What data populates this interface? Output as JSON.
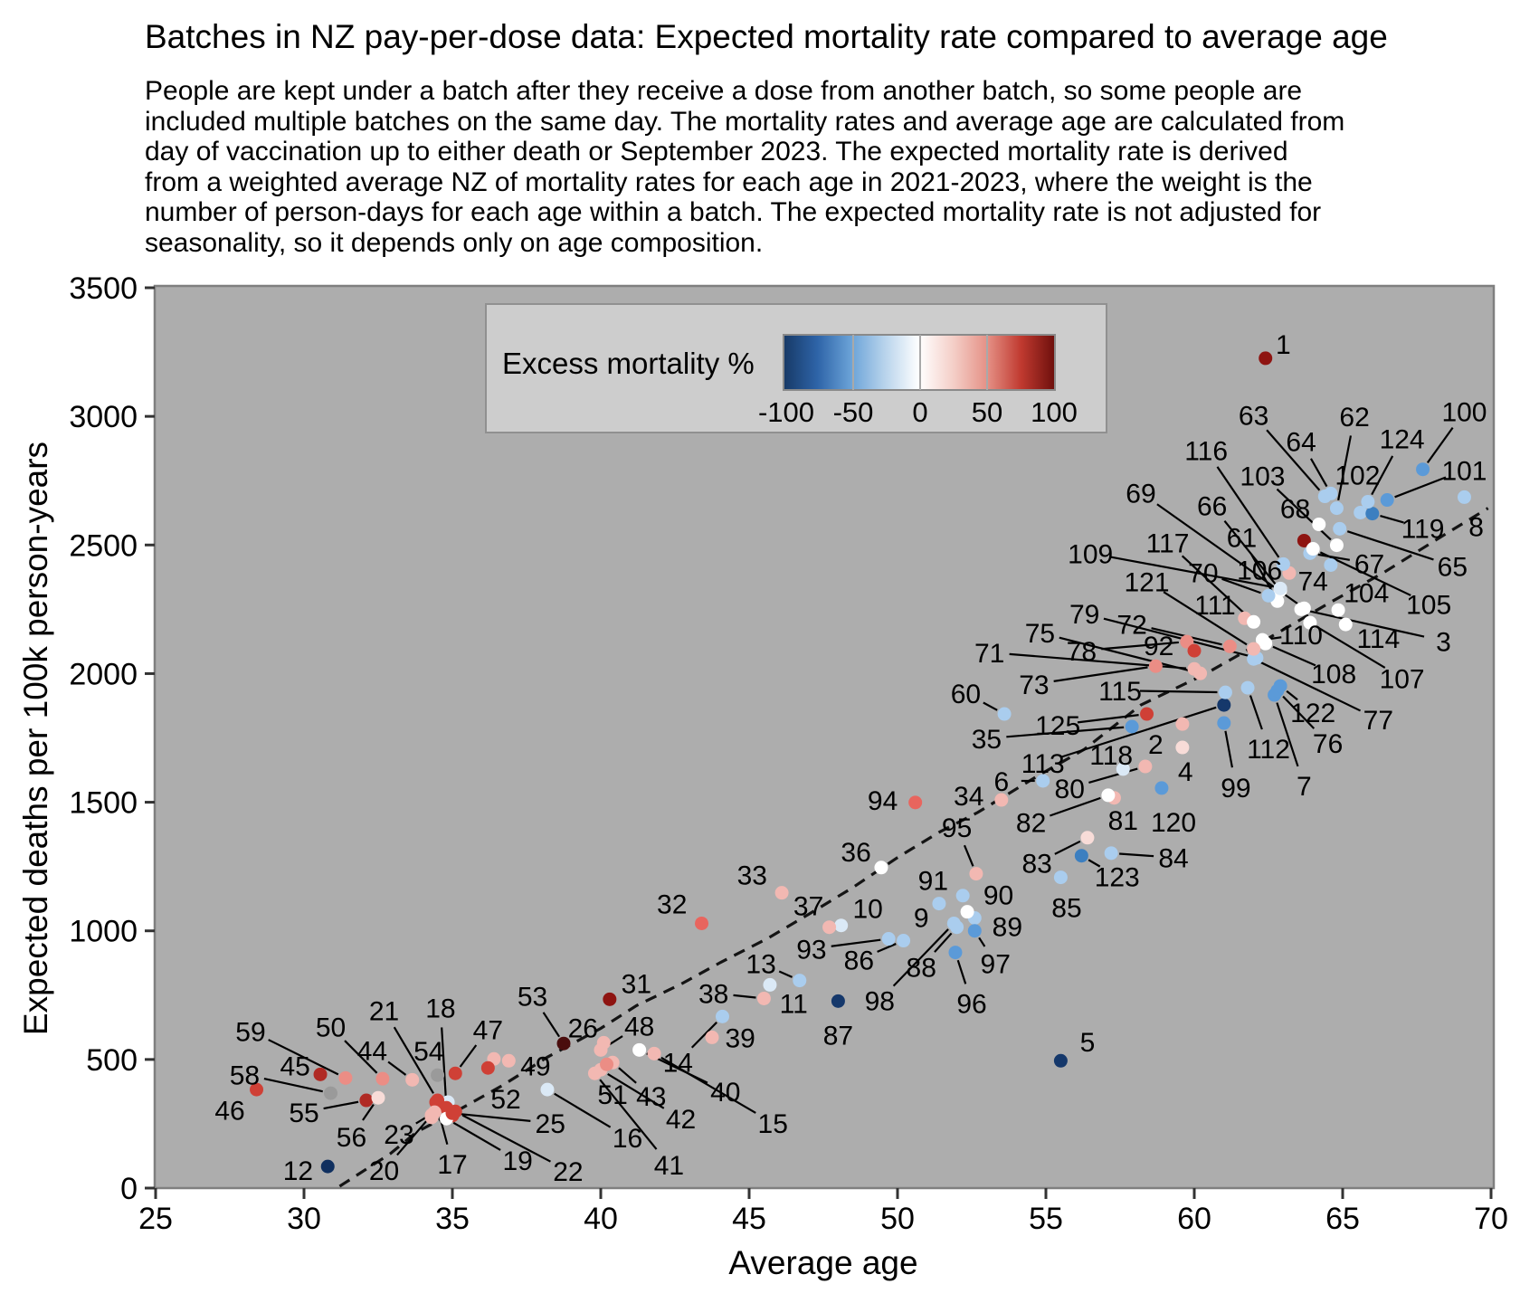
{
  "title": "Batches in NZ pay-per-dose data: Expected mortality rate compared to average age",
  "subtitle": {
    "lines": [
      "People are kept under a batch after they receive a dose from another batch, so some people are",
      "included multiple batches on the same day. The mortality rates and average age are calculated from",
      "day of vaccination up to either death or September 2023. The expected mortality rate is derived",
      "from a weighted average NZ of mortality rates for each age in 2021-2023, where the weight is the",
      "number of person-days for each age within a batch. The expected mortality rate is not adjusted for",
      "seasonality, so it depends only on age composition."
    ]
  },
  "axes": {
    "xlabel": "Average age",
    "ylabel": "Expected deaths per 100k person-years",
    "xticks": [
      25,
      30,
      35,
      40,
      45,
      50,
      55,
      60,
      65,
      70
    ],
    "yticks": [
      0,
      500,
      1000,
      1500,
      2000,
      2500,
      3000,
      3500
    ],
    "xlim": [
      25,
      70
    ],
    "ylim": [
      0,
      3500
    ],
    "plot_bg": "#adadad",
    "border_color": "#7f7f7f"
  },
  "legend": {
    "label": "Excess mortality %",
    "ticks": [
      -100,
      -50,
      0,
      50,
      100
    ],
    "bg": "#cdcdcd",
    "gradient": [
      "#173966",
      "#2e64a8",
      "#6ba3d8",
      "#b9d4ec",
      "#ffffff",
      "#f4cfc8",
      "#e59186",
      "#c03a30",
      "#6d0f0c"
    ]
  },
  "chart_data": {
    "type": "scatter",
    "title": "Batches in NZ pay-per-dose data: Expected mortality rate compared to average age",
    "xlabel": "Average age",
    "ylabel": "Expected deaths per 100k person-years",
    "xlim": [
      25,
      70
    ],
    "ylim": [
      0,
      3500
    ],
    "legend_position": "top-left-inside",
    "grid": false,
    "point_columns": [
      "id",
      "age",
      "expected_rate",
      "color",
      "label_age",
      "label_rate"
    ],
    "points": [
      [
        1,
        62.4,
        3226,
        "#8e1411",
        63.0,
        3282
      ],
      [
        2,
        59.6,
        1804,
        "#f2b8b2",
        58.7,
        1727
      ],
      [
        3,
        63.6,
        2250,
        "#ffffff",
        68.4,
        2127
      ],
      [
        4,
        59.6,
        1713,
        "#f8dcd8",
        59.7,
        1622
      ],
      [
        5,
        55.5,
        495,
        "#15386b",
        56.4,
        569
      ],
      [
        6,
        54.9,
        1583,
        "#aacdee",
        53.5,
        1583
      ],
      [
        7,
        62.7,
        1917,
        "#5b9ad8",
        63.7,
        1566
      ],
      [
        8,
        69.1,
        2686,
        "#aacdee",
        69.5,
        2573
      ],
      [
        9,
        51.4,
        1106,
        "#aacdee",
        50.8,
        1053
      ],
      [
        10,
        48.1,
        1021,
        "#dbe9f6",
        49.0,
        1088
      ],
      [
        11,
        45.7,
        790,
        "#dbe9f6",
        46.5,
        720
      ],
      [
        12,
        30.8,
        84,
        "#0f2f5f",
        29.8,
        70
      ],
      [
        13,
        46.7,
        807,
        "#aacdee",
        45.4,
        874
      ],
      [
        14,
        44.1,
        667,
        "#aacdee",
        42.6,
        491
      ],
      [
        15,
        41.8,
        523,
        "#f2b8b2",
        45.8,
        253
      ],
      [
        16,
        38.2,
        383,
        "#dbe9f6",
        40.9,
        197
      ],
      [
        17,
        34.45,
        334,
        "#cf4036",
        35.0,
        95
      ],
      [
        18,
        34.8,
        312,
        "#cf4036",
        34.6,
        702
      ],
      [
        19,
        34.8,
        270,
        "#ffffff",
        37.2,
        109
      ],
      [
        20,
        34.3,
        284,
        "#f2b8b2",
        32.7,
        70
      ],
      [
        21,
        34.5,
        341,
        "#cf4036",
        32.7,
        692
      ],
      [
        22,
        35.1,
        298,
        "#cf4036",
        38.9,
        67
      ],
      [
        23,
        34.4,
        295,
        "#f2b8b2",
        33.2,
        211
      ],
      [
        25,
        35.0,
        291,
        "#cf4036",
        38.3,
        253
      ],
      [
        26,
        40.1,
        565,
        "#f2b8b2",
        39.4,
        625
      ],
      [
        31,
        40.3,
        734,
        "#8e1411",
        41.2,
        797
      ],
      [
        32,
        43.4,
        1029,
        "#e8655e",
        42.4,
        1106
      ],
      [
        33,
        46.1,
        1148,
        "#f2b8b2",
        45.1,
        1218
      ],
      [
        34,
        53.5,
        1509,
        "#f2b8b2",
        52.4,
        1527
      ],
      [
        35,
        57.9,
        1794,
        "#5b9ad8",
        53.0,
        1748
      ],
      [
        36,
        49.45,
        1246,
        "#ffffff",
        48.6,
        1309
      ],
      [
        37,
        47.7,
        1014,
        "#f2b8b2",
        47.0,
        1099
      ],
      [
        38,
        45.5,
        737,
        "#f2b8b2",
        43.8,
        758
      ],
      [
        39,
        43.75,
        586,
        "#f2b8b2",
        44.7,
        586
      ],
      [
        40,
        41.3,
        537,
        "#ffffff",
        44.2,
        376
      ],
      [
        41,
        39.8,
        446,
        "#f2b8b2",
        42.3,
        91
      ],
      [
        42,
        40.0,
        460,
        "#f2b8b2",
        42.7,
        270
      ],
      [
        43,
        40.4,
        488,
        "#f2b8b2",
        41.7,
        358
      ],
      [
        44,
        33.65,
        421,
        "#f2b8b2",
        32.3,
        537
      ],
      [
        45,
        30.55,
        442,
        "#b02a24",
        29.7,
        477
      ],
      [
        46,
        28.4,
        383,
        "#cf4036",
        27.5,
        305
      ],
      [
        47,
        35.1,
        446,
        "#cf4036",
        36.2,
        618
      ],
      [
        48,
        40.0,
        537,
        "#f2b8b2",
        41.3,
        632
      ],
      [
        49,
        36.9,
        495,
        "#f2b8b2",
        37.8,
        477
      ],
      [
        50,
        32.65,
        425,
        "#eb8d85",
        30.9,
        628
      ],
      [
        51,
        40.2,
        481,
        "#eb8d85",
        40.4,
        365
      ],
      [
        52,
        36.2,
        467,
        "#cf4036",
        36.8,
        348
      ],
      [
        53,
        38.75,
        562,
        "#4a0d0d",
        37.7,
        748
      ],
      [
        54,
        34.5,
        439,
        "#9a9a9a",
        34.2,
        534
      ],
      [
        55,
        32.1,
        341,
        "#b02a24",
        30.0,
        295
      ],
      [
        56,
        32.5,
        351,
        "#f8dcd8",
        31.6,
        200
      ],
      [
        58,
        30.9,
        369,
        "#9a9a9a",
        28.0,
        442
      ],
      [
        59,
        31.4,
        428,
        "#eb8d85",
        28.2,
        611
      ],
      [
        60,
        53.6,
        1843,
        "#aacdee",
        52.3,
        1924
      ],
      [
        61,
        62.8,
        2282,
        "#ffffff",
        61.6,
        2531
      ],
      [
        62,
        64.8,
        2643,
        "#aacdee",
        65.4,
        3001
      ],
      [
        63,
        64.4,
        2689,
        "#aacdee",
        62.0,
        3005
      ],
      [
        64,
        64.6,
        2700,
        "#aacdee",
        63.6,
        2903
      ],
      [
        65,
        64.9,
        2563,
        "#aacdee",
        68.7,
        2419
      ],
      [
        66,
        62.9,
        2324,
        "#ffffff",
        60.6,
        2654
      ],
      [
        67,
        63.9,
        2468,
        "#aacdee",
        65.9,
        2429
      ],
      [
        68,
        63.7,
        2517,
        "#8e1411",
        63.4,
        2643
      ],
      [
        69,
        63.7,
        2254,
        "#ffffff",
        58.2,
        2703
      ],
      [
        70,
        62.5,
        2303,
        "#aacdee",
        60.3,
        2394
      ],
      [
        71,
        60.0,
        2018,
        "#f2b8b2",
        53.1,
        2082
      ],
      [
        72,
        61.2,
        2106,
        "#eb8d85",
        57.9,
        2194
      ],
      [
        73,
        58.7,
        2029,
        "#eb8d85",
        54.6,
        1959
      ],
      [
        74,
        64.6,
        2422,
        "#aacdee",
        64.0,
        2362
      ],
      [
        75,
        60.2,
        2001,
        "#f2b8b2",
        54.8,
        2159
      ],
      [
        76,
        62.8,
        1934,
        "#5b9ad8",
        64.5,
        1731
      ],
      [
        77,
        62.0,
        2057,
        "#aacdee",
        66.2,
        1822
      ],
      [
        78,
        59.75,
        2124,
        "#eb8d85",
        56.2,
        2089
      ],
      [
        79,
        62.1,
        2061,
        "#aacdee",
        56.3,
        2233
      ],
      [
        80,
        58.35,
        1639,
        "#f2b8b2",
        55.8,
        1555
      ],
      [
        81,
        57.3,
        1517,
        "#f2b8b2",
        57.6,
        1432
      ],
      [
        82,
        57.1,
        1527,
        "#ffffff",
        54.5,
        1422
      ],
      [
        83,
        56.4,
        1362,
        "#f8dcd8",
        54.7,
        1264
      ],
      [
        84,
        57.2,
        1302,
        "#aacdee",
        59.3,
        1285
      ],
      [
        85,
        55.5,
        1208,
        "#aacdee",
        55.7,
        1092
      ],
      [
        86,
        50.2,
        962,
        "#aacdee",
        48.7,
        888
      ],
      [
        87,
        48.0,
        727,
        "#15386b",
        48.0,
        597
      ],
      [
        88,
        52.0,
        1014,
        "#aacdee",
        50.8,
        860
      ],
      [
        89,
        52.6,
        1050,
        "#aacdee",
        53.7,
        1018
      ],
      [
        90,
        52.35,
        1074,
        "#ffffff",
        53.4,
        1141
      ],
      [
        91,
        52.2,
        1137,
        "#aacdee",
        51.2,
        1197
      ],
      [
        92,
        60.0,
        2089,
        "#cf4036",
        58.8,
        2110
      ],
      [
        93,
        49.7,
        969,
        "#aacdee",
        47.1,
        930
      ],
      [
        94,
        50.6,
        1499,
        "#e8655e",
        49.5,
        1509
      ],
      [
        95,
        52.65,
        1222,
        "#f2b8b2",
        52.0,
        1404
      ],
      [
        96,
        51.95,
        916,
        "#5b9ad8",
        52.5,
        720
      ],
      [
        97,
        52.6,
        1000,
        "#5b9ad8",
        53.3,
        874
      ],
      [
        98,
        51.9,
        1029,
        "#aacdee",
        49.4,
        730
      ],
      [
        99,
        61.0,
        1808,
        "#5b9ad8",
        61.4,
        1559
      ],
      [
        100,
        67.7,
        2794,
        "#5b9ad8",
        69.1,
        3019
      ],
      [
        101,
        66.5,
        2675,
        "#5b9ad8",
        69.1,
        2791
      ],
      [
        102,
        65.6,
        2626,
        "#aacdee",
        65.5,
        2773
      ],
      [
        103,
        64.8,
        2499,
        "#ffffff",
        62.3,
        2770
      ],
      [
        104,
        64.85,
        2247,
        "#ffffff",
        65.8,
        2317
      ],
      [
        105,
        64.0,
        2485,
        "#ffffff",
        67.9,
        2271
      ],
      [
        106,
        63.2,
        2391,
        "#f2b8b2",
        62.2,
        2405
      ],
      [
        107,
        63.9,
        2198,
        "#ffffff",
        67.0,
        1983
      ],
      [
        108,
        62.4,
        2117,
        "#ffffff",
        64.7,
        2001
      ],
      [
        109,
        62.9,
        2331,
        "#dbe9f6",
        56.5,
        2468
      ],
      [
        110,
        62.3,
        2131,
        "#ffffff",
        63.6,
        2152
      ],
      [
        111,
        61.7,
        2215,
        "#f2b8b2",
        60.7,
        2268
      ],
      [
        112,
        61.8,
        1945,
        "#aacdee",
        62.5,
        1710
      ],
      [
        113,
        61.0,
        1878,
        "#15386b",
        54.9,
        1653
      ],
      [
        114,
        65.1,
        2191,
        "#ffffff",
        66.2,
        2138
      ],
      [
        115,
        61.05,
        1927,
        "#aacdee",
        57.5,
        1934
      ],
      [
        116,
        63.0,
        2426,
        "#aacdee",
        60.4,
        2868
      ],
      [
        117,
        62.0,
        2201,
        "#ffffff",
        59.1,
        2510
      ],
      [
        118,
        57.6,
        1629,
        "#dbe9f6",
        57.2,
        1685
      ],
      [
        119,
        66.0,
        2622,
        "#3c7fc0",
        67.7,
        2566
      ],
      [
        120,
        58.9,
        1555,
        "#5b9ad8",
        59.3,
        1425
      ],
      [
        121,
        62.0,
        2096,
        "#f2b8b2",
        58.4,
        2359
      ],
      [
        122,
        62.9,
        1952,
        "#5b9ad8",
        64.0,
        1850
      ],
      [
        123,
        56.2,
        1292,
        "#3c7fc0",
        57.4,
        1211
      ],
      [
        124,
        65.85,
        2668,
        "#aacdee",
        67.0,
        2914
      ],
      [
        125,
        58.4,
        1843,
        "#cf4036",
        55.4,
        1801
      ]
    ],
    "unlabeled_points": [
      [
        64.2,
        2580,
        "#ffffff"
      ],
      [
        36.4,
        502,
        "#f2b8b2"
      ],
      [
        34.85,
        334,
        "#dbe9f6"
      ],
      [
        34.3,
        275,
        "#f2b8b2"
      ],
      [
        35.0,
        282,
        "#cf4036"
      ]
    ],
    "trend_dashed": [
      [
        31.2,
        7
      ],
      [
        32.9,
        133
      ],
      [
        33.8,
        218
      ],
      [
        35.4,
        316
      ],
      [
        36.7,
        400
      ],
      [
        38.2,
        509
      ],
      [
        40.0,
        621
      ],
      [
        41.2,
        709
      ],
      [
        42.7,
        793
      ],
      [
        44.05,
        878
      ],
      [
        45.6,
        969
      ],
      [
        47.0,
        1064
      ],
      [
        48.5,
        1169
      ],
      [
        50.0,
        1285
      ],
      [
        51.4,
        1383
      ],
      [
        52.7,
        1460
      ],
      [
        54.7,
        1601
      ],
      [
        56.3,
        1706
      ],
      [
        58.2,
        1878
      ],
      [
        60.3,
        1994
      ],
      [
        62.4,
        2131
      ],
      [
        64.6,
        2278
      ],
      [
        66.4,
        2394
      ],
      [
        68.5,
        2545
      ],
      [
        69.9,
        2643
      ]
    ]
  }
}
